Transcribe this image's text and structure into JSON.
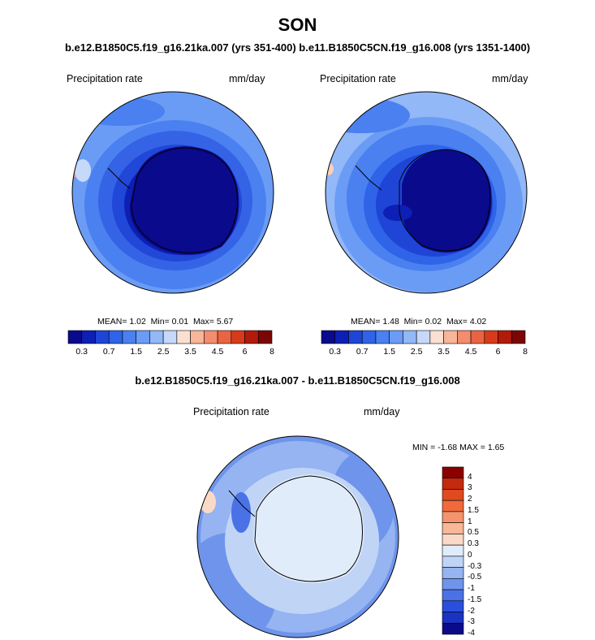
{
  "title": "SON",
  "subtitle": "b.e12.B1850C5.f19_g16.21ka.007 (yrs 351-400) b.e11.B1850C5CN.f19_g16.008 (yrs 1351-1400)",
  "panels": [
    {
      "variable": "Precipitation rate",
      "units": "mm/day",
      "stats": {
        "mean_label": "MEAN=",
        "mean": "1.02",
        "min_label": "Min=",
        "min": "0.01",
        "max_label": "Max=",
        "max": "5.67"
      }
    },
    {
      "variable": "Precipitation rate",
      "units": "mm/day",
      "stats": {
        "mean_label": "MEAN=",
        "mean": "1.48",
        "min_label": "Min=",
        "min": "0.02",
        "max_label": "Max=",
        "max": "4.02"
      }
    }
  ],
  "colorbar_top": {
    "colors": [
      "#0a0a8c",
      "#0d1fb4",
      "#1f45d6",
      "#2f63e8",
      "#4a80f0",
      "#6b9cf5",
      "#93b8f7",
      "#c6d9fb",
      "#fbe0d2",
      "#f7b59a",
      "#f38d6e",
      "#ea6443",
      "#d83a1c",
      "#b21a0a",
      "#7c0606"
    ],
    "labels": [
      "0.3",
      "0.7",
      "1.5",
      "2.5",
      "3.5",
      "4.5",
      "6",
      "8"
    ]
  },
  "difference": {
    "title": "b.e12.B1850C5.f19_g16.21ka.007 - b.e11.B1850C5CN.f19_g16.008",
    "variable": "Precipitation rate",
    "units": "mm/day",
    "min_label": "MIN =",
    "min": "-1.68",
    "max_label": "MAX =",
    "max": "1.65",
    "colorbar": {
      "colors": [
        "#8c0000",
        "#c42a0e",
        "#e04a1f",
        "#f06a3c",
        "#f5936c",
        "#f8b798",
        "#fbd9c7",
        "#e0ecfa",
        "#c0d4f6",
        "#95b4f1",
        "#6e94ec",
        "#4a72e6",
        "#2a4fdc",
        "#1a33c2",
        "#0b0b8a"
      ],
      "labels": [
        "4",
        "3",
        "2",
        "1.5",
        "1",
        "0.5",
        "0.3",
        "0",
        "-0.3",
        "-0.5",
        "-1",
        "-1.5",
        "-2",
        "-3",
        "-4"
      ]
    }
  }
}
